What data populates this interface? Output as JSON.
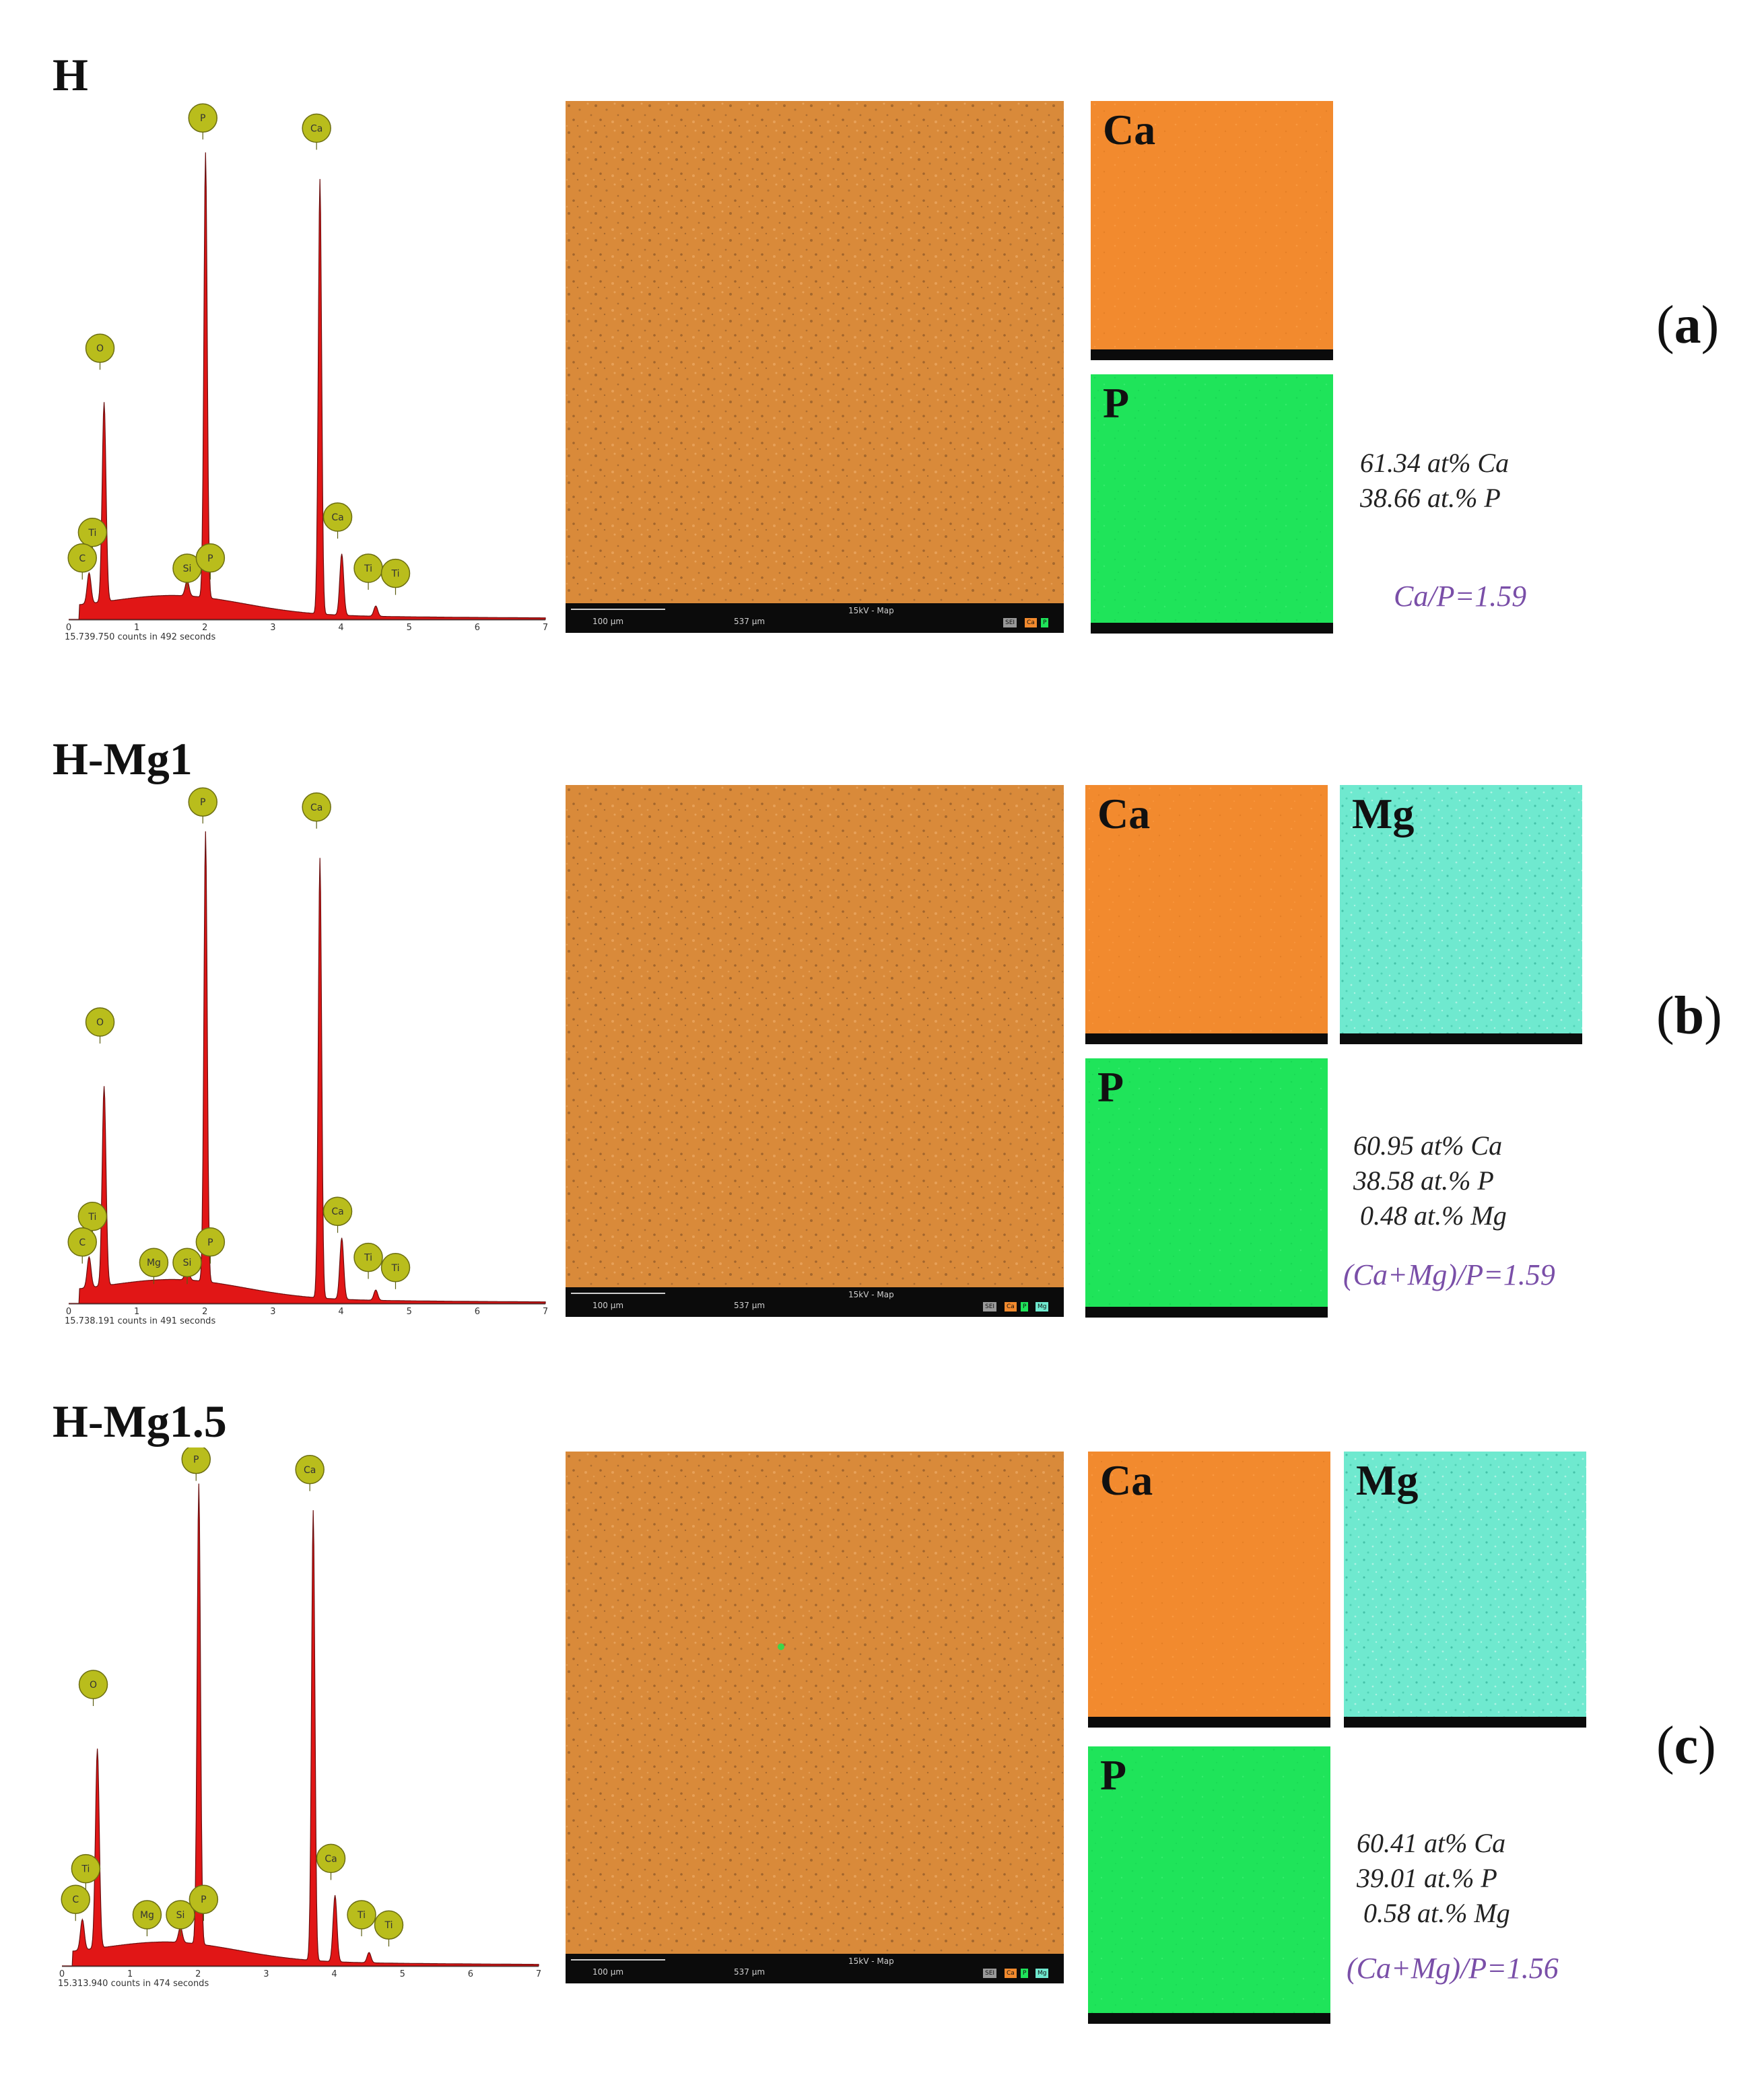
{
  "colors": {
    "spectrum_fill": "#e11616",
    "peak_marker": "#b9bd1c",
    "sem_orange": "#d98a3a",
    "ca_map": "#f28a2e",
    "p_map": "#1fe45a",
    "mg_map": "#6fe9cf",
    "ratio_text": "#7a4fa8"
  },
  "chart_data": [
    {
      "type": "area",
      "panel": "a",
      "title": "H",
      "xlabel": "",
      "ylabel": "",
      "xlim": [
        0,
        7
      ],
      "x_ticks": [
        "0",
        "1",
        "2",
        "3",
        "4",
        "5",
        "6",
        "7"
      ],
      "counts_caption": "15,739,750 counts in 492 seconds",
      "peaks": [
        {
          "element": "O",
          "kev": 0.52,
          "height": 0.39
        },
        {
          "element": "Ti",
          "kev": 0.3,
          "height": 0.06
        },
        {
          "element": "P",
          "kev": 2.01,
          "height": 0.87
        },
        {
          "element": "Ca",
          "kev": 3.69,
          "height": 0.85
        },
        {
          "element": "Ca",
          "kev": 4.01,
          "height": 0.12
        },
        {
          "element": "Si",
          "kev": 1.74,
          "height": 0.03
        },
        {
          "element": "Ti",
          "kev": 4.51,
          "height": 0.02
        }
      ],
      "markers": [
        {
          "label": "P",
          "kev": 1.97,
          "y": 0.98
        },
        {
          "label": "Ca",
          "kev": 3.64,
          "y": 0.96
        },
        {
          "label": "O",
          "kev": 0.46,
          "y": 0.53
        },
        {
          "label": "Ti",
          "kev": 0.35,
          "y": 0.17
        },
        {
          "label": "C",
          "kev": 0.2,
          "y": 0.12
        },
        {
          "label": "Si",
          "kev": 1.74,
          "y": 0.1
        },
        {
          "label": "P",
          "kev": 2.08,
          "y": 0.12
        },
        {
          "label": "Ca",
          "kev": 3.95,
          "y": 0.2
        },
        {
          "label": "Ti",
          "kev": 4.4,
          "y": 0.1
        },
        {
          "label": "Ti",
          "kev": 4.8,
          "y": 0.09
        }
      ]
    },
    {
      "type": "area",
      "panel": "b",
      "title": "H-Mg1",
      "xlabel": "",
      "ylabel": "",
      "xlim": [
        0,
        7
      ],
      "x_ticks": [
        "0",
        "1",
        "2",
        "3",
        "4",
        "5",
        "6",
        "7"
      ],
      "counts_caption": "15,738,191 counts in 491 seconds",
      "peaks": [
        {
          "element": "O",
          "kev": 0.52,
          "height": 0.39
        },
        {
          "element": "Ti",
          "kev": 0.3,
          "height": 0.06
        },
        {
          "element": "P",
          "kev": 2.01,
          "height": 0.88
        },
        {
          "element": "Ca",
          "kev": 3.69,
          "height": 0.86
        },
        {
          "element": "Ca",
          "kev": 4.01,
          "height": 0.12
        },
        {
          "element": "Si",
          "kev": 1.74,
          "height": 0.03
        },
        {
          "element": "Ti",
          "kev": 4.51,
          "height": 0.02
        }
      ],
      "markers": [
        {
          "label": "P",
          "kev": 1.97,
          "y": 0.98
        },
        {
          "label": "Ca",
          "kev": 3.64,
          "y": 0.97
        },
        {
          "label": "O",
          "kev": 0.46,
          "y": 0.55
        },
        {
          "label": "Ti",
          "kev": 0.35,
          "y": 0.17
        },
        {
          "label": "C",
          "kev": 0.2,
          "y": 0.12
        },
        {
          "label": "Mg",
          "kev": 1.25,
          "y": 0.08
        },
        {
          "label": "Si",
          "kev": 1.74,
          "y": 0.08
        },
        {
          "label": "P",
          "kev": 2.08,
          "y": 0.12
        },
        {
          "label": "Ca",
          "kev": 3.95,
          "y": 0.18
        },
        {
          "label": "Ti",
          "kev": 4.4,
          "y": 0.09
        },
        {
          "label": "Ti",
          "kev": 4.8,
          "y": 0.07
        }
      ]
    },
    {
      "type": "area",
      "panel": "c",
      "title": "H-Mg1.5",
      "xlabel": "",
      "ylabel": "",
      "xlim": [
        0,
        7
      ],
      "x_ticks": [
        "0",
        "1",
        "2",
        "3",
        "4",
        "5",
        "6",
        "7"
      ],
      "counts_caption": "15,313,940 counts in 474 seconds",
      "peaks": [
        {
          "element": "O",
          "kev": 0.52,
          "height": 0.39
        },
        {
          "element": "Ti",
          "kev": 0.3,
          "height": 0.06
        },
        {
          "element": "P",
          "kev": 2.01,
          "height": 0.9
        },
        {
          "element": "Ca",
          "kev": 3.69,
          "height": 0.88
        },
        {
          "element": "Ca",
          "kev": 4.01,
          "height": 0.13
        },
        {
          "element": "Si",
          "kev": 1.74,
          "height": 0.03
        },
        {
          "element": "Ti",
          "kev": 4.51,
          "height": 0.02
        }
      ],
      "markers": [
        {
          "label": "P",
          "kev": 1.97,
          "y": 0.99
        },
        {
          "label": "Ca",
          "kev": 3.64,
          "y": 0.97
        },
        {
          "label": "O",
          "kev": 0.46,
          "y": 0.55
        },
        {
          "label": "Ti",
          "kev": 0.35,
          "y": 0.19
        },
        {
          "label": "C",
          "kev": 0.2,
          "y": 0.13
        },
        {
          "label": "Mg",
          "kev": 1.25,
          "y": 0.1
        },
        {
          "label": "Si",
          "kev": 1.74,
          "y": 0.1
        },
        {
          "label": "P",
          "kev": 2.08,
          "y": 0.13
        },
        {
          "label": "Ca",
          "kev": 3.95,
          "y": 0.21
        },
        {
          "label": "Ti",
          "kev": 4.4,
          "y": 0.1
        },
        {
          "label": "Ti",
          "kev": 4.8,
          "y": 0.08
        }
      ]
    }
  ],
  "panels": [
    {
      "letter": "a",
      "sem": {
        "scale": "100 µm",
        "fov": "537 µm",
        "mode": "15kV - Map",
        "legend": [
          "SEI",
          "Ca",
          "P"
        ]
      },
      "maps": [
        {
          "label": "Ca"
        },
        {
          "label": "P"
        }
      ],
      "composition": [
        "61.34 at% Ca",
        "38.66 at.% P"
      ],
      "ratio": "Ca/P=1.59"
    },
    {
      "letter": "b",
      "sem": {
        "scale": "100 µm",
        "fov": "537 µm",
        "mode": "15kV - Map",
        "legend": [
          "SEI",
          "Ca",
          "P",
          "Mg"
        ]
      },
      "maps": [
        {
          "label": "Ca"
        },
        {
          "label": "Mg"
        },
        {
          "label": "P"
        }
      ],
      "composition": [
        "60.95 at% Ca",
        "38.58 at.% P",
        " 0.48 at.% Mg"
      ],
      "ratio": "(Ca+Mg)/P=1.59"
    },
    {
      "letter": "c",
      "sem": {
        "scale": "100 µm",
        "fov": "537 µm",
        "mode": "15kV - Map",
        "legend": [
          "SEI",
          "Ca",
          "P",
          "Mg"
        ]
      },
      "maps": [
        {
          "label": "Ca"
        },
        {
          "label": "Mg"
        },
        {
          "label": "P"
        }
      ],
      "composition": [
        "60.41 at% Ca",
        "39.01 at.% P",
        " 0.58 at.% Mg"
      ],
      "ratio": "(Ca+Mg)/P=1.56"
    }
  ]
}
